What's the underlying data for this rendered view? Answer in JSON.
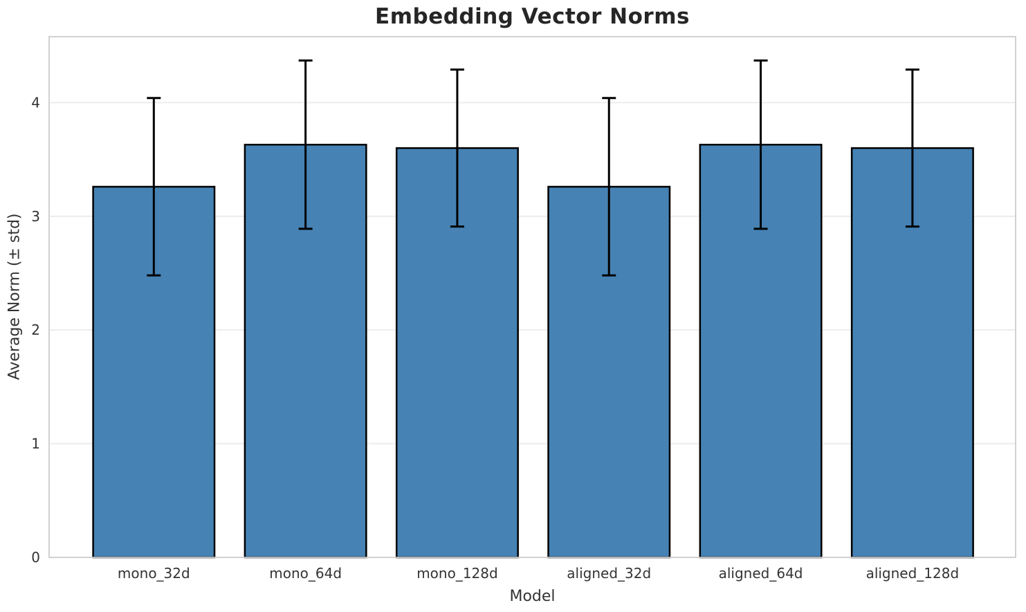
{
  "chart_data": {
    "type": "bar",
    "title": "Embedding Vector Norms",
    "xlabel": "Model",
    "ylabel": "Average Norm (± std)",
    "categories": [
      "mono_32d",
      "mono_64d",
      "mono_128d",
      "aligned_32d",
      "aligned_64d",
      "aligned_128d"
    ],
    "values": [
      3.26,
      3.63,
      3.6,
      3.26,
      3.63,
      3.6
    ],
    "errors": [
      0.78,
      0.74,
      0.69,
      0.78,
      0.74,
      0.69
    ],
    "ylim": [
      0,
      4.58
    ],
    "yticks": [
      0,
      1,
      2,
      3,
      4
    ],
    "xlim": [
      -0.69,
      5.68
    ],
    "bar_width": 0.8,
    "grid": "horizontal",
    "legend_position": "none",
    "colors": {
      "bar_fill": "#4682B4",
      "bar_edge": "#000000",
      "error_bar": "#000000",
      "gridline": "#ececec",
      "spine": "#cccccc",
      "title_text": "#262626",
      "tick_text": "#333333"
    }
  }
}
